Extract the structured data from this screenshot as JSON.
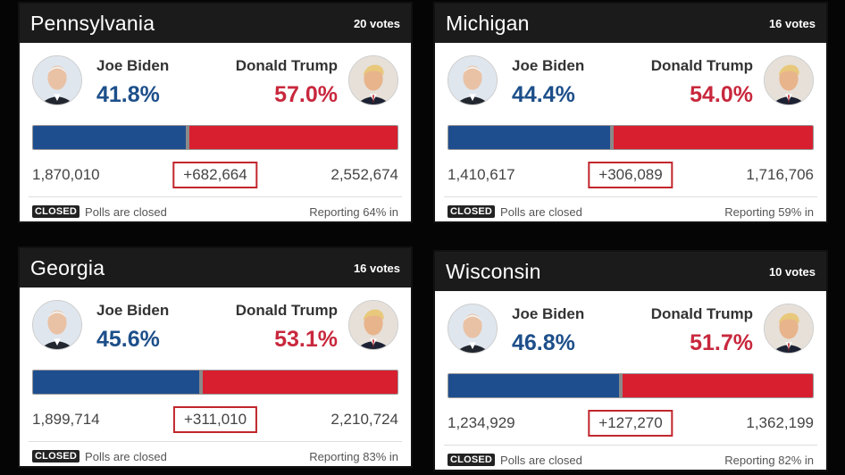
{
  "colors": {
    "biden": "#1f4e8f",
    "trump": "#d81f2f",
    "margin_box": "#c1272d"
  },
  "cards": [
    {
      "state": "Pennsylvania",
      "votes": "20 votes",
      "biden": {
        "name": "Joe Biden",
        "pct": "41.8%",
        "votes": "1,870,010"
      },
      "trump": {
        "name": "Donald Trump",
        "pct": "57.0%",
        "votes": "2,552,674"
      },
      "margin": "+682,664",
      "bar_blue_fraction": 0.418,
      "status_badge": "CLOSED",
      "status": "Polls are closed",
      "reporting": "Reporting 64% in"
    },
    {
      "state": "Michigan",
      "votes": "16 votes",
      "biden": {
        "name": "Joe Biden",
        "pct": "44.4%",
        "votes": "1,410,617"
      },
      "trump": {
        "name": "Donald Trump",
        "pct": "54.0%",
        "votes": "1,716,706"
      },
      "margin": "+306,089",
      "bar_blue_fraction": 0.444,
      "status_badge": "CLOSED",
      "status": "Polls are closed",
      "reporting": "Reporting 59% in"
    },
    {
      "state": "Georgia",
      "votes": "16 votes",
      "biden": {
        "name": "Joe Biden",
        "pct": "45.6%",
        "votes": "1,899,714"
      },
      "trump": {
        "name": "Donald Trump",
        "pct": "53.1%",
        "votes": "2,210,724"
      },
      "margin": "+311,010",
      "bar_blue_fraction": 0.456,
      "status_badge": "CLOSED",
      "status": "Polls are closed",
      "reporting": "Reporting 83% in"
    },
    {
      "state": "Wisconsin",
      "votes": "10 votes",
      "biden": {
        "name": "Joe Biden",
        "pct": "46.8%",
        "votes": "1,234,929"
      },
      "trump": {
        "name": "Donald Trump",
        "pct": "51.7%",
        "votes": "1,362,199"
      },
      "margin": "+127,270",
      "bar_blue_fraction": 0.468,
      "status_badge": "CLOSED",
      "status": "Polls are closed",
      "reporting": "Reporting 82% in"
    }
  ]
}
